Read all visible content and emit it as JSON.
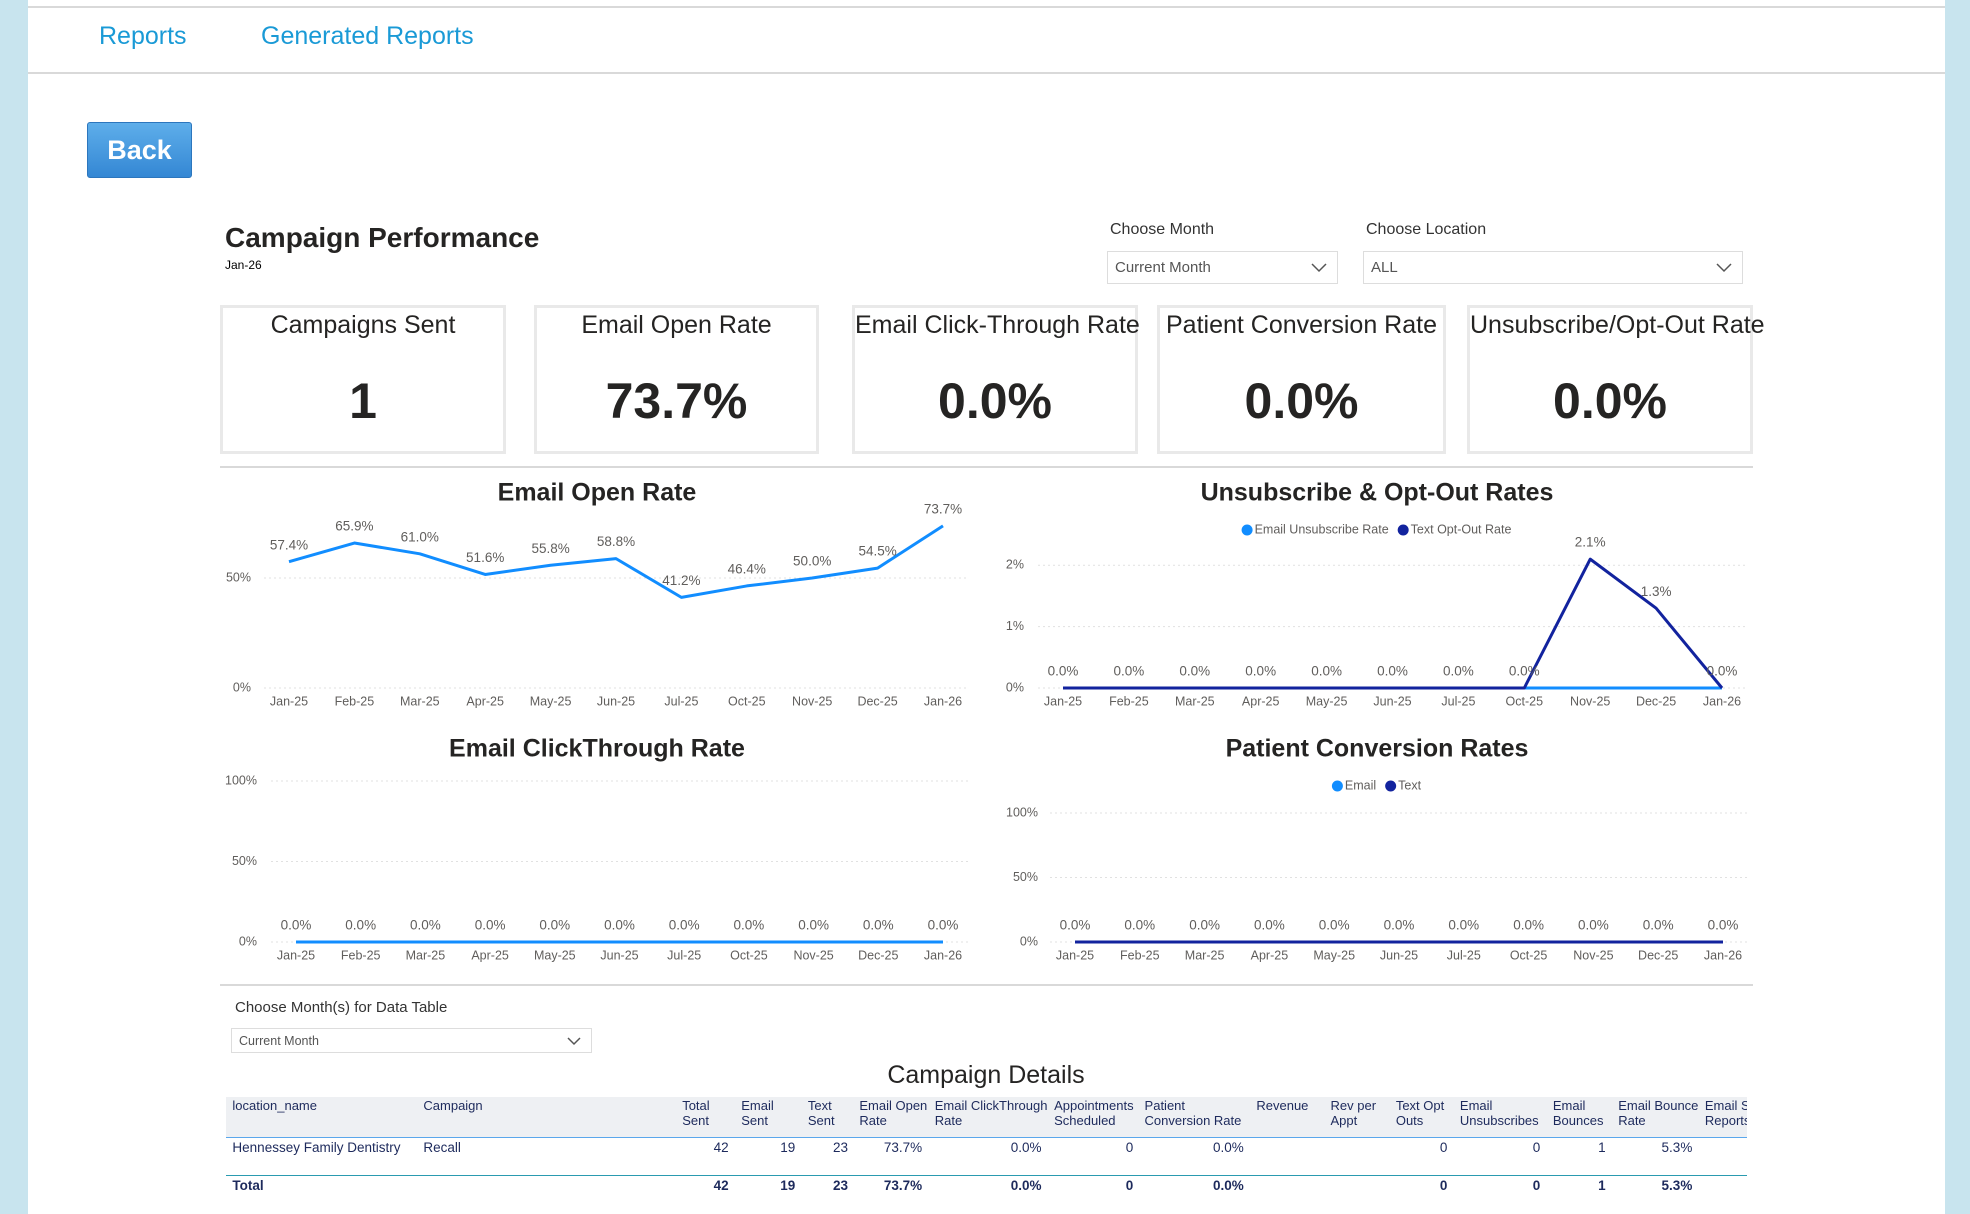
{
  "nav": {
    "links": [
      "Reports",
      "Generated Reports"
    ]
  },
  "back_button": "Back",
  "header": {
    "title": "Campaign Performance",
    "period": "Jan-26"
  },
  "filters": [
    {
      "label": "Choose Month",
      "value": "Current Month"
    },
    {
      "label": "Choose Location",
      "value": "ALL"
    }
  ],
  "kpis": [
    {
      "label": "Campaigns Sent",
      "value": "1"
    },
    {
      "label": "Email Open Rate",
      "value": "73.7%"
    },
    {
      "label": "Email Click-Through Rate",
      "value": "0.0%"
    },
    {
      "label": "Patient Conversion Rate",
      "value": "0.0%"
    },
    {
      "label": "Unsubscribe/Opt-Out Rate",
      "value": "0.0%"
    }
  ],
  "chart_data": [
    {
      "type": "line",
      "title": "Email Open Rate",
      "categories": [
        "Jan-25",
        "Feb-25",
        "Mar-25",
        "Apr-25",
        "May-25",
        "Jun-25",
        "Jul-25",
        "Oct-25",
        "Nov-25",
        "Dec-25",
        "Jan-26"
      ],
      "values": [
        57.4,
        65.9,
        61.0,
        51.6,
        55.8,
        58.8,
        41.2,
        46.4,
        50.0,
        54.5,
        73.7
      ],
      "value_labels": [
        "57.4%",
        "65.9%",
        "61.0%",
        "51.6%",
        "55.8%",
        "58.8%",
        "41.2%",
        "46.4%",
        "50.0%",
        "54.5%",
        "73.7%"
      ],
      "color": "#118dff",
      "ylim": [
        0,
        80
      ],
      "yticks": [
        {
          "value": 0,
          "label": "0%"
        },
        {
          "value": 50,
          "label": "50%"
        }
      ],
      "grid": true
    },
    {
      "type": "line",
      "title": "Unsubscribe & Opt-Out Rates",
      "categories": [
        "Jan-25",
        "Feb-25",
        "Mar-25",
        "Apr-25",
        "May-25",
        "Jun-25",
        "Jul-25",
        "Oct-25",
        "Nov-25",
        "Dec-25",
        "Jan-26"
      ],
      "series": [
        {
          "name": "Email Unsubscribe Rate",
          "color": "#118dff",
          "values": [
            0,
            0,
            0,
            0,
            0,
            0,
            0,
            0,
            0,
            0,
            0
          ]
        },
        {
          "name": "Text Opt-Out Rate",
          "color": "#12239e",
          "values": [
            0,
            0,
            0,
            0,
            0,
            0,
            0,
            0,
            2.1,
            1.3,
            0
          ],
          "value_labels": [
            "0.0%",
            "0.0%",
            "0.0%",
            "0.0%",
            "0.0%",
            "0.0%",
            "0.0%",
            "0.0%",
            "2.1%",
            "1.3%",
            "0.0%"
          ]
        }
      ],
      "ylim": [
        0,
        2.2
      ],
      "yticks": [
        {
          "value": 0,
          "label": "0%"
        },
        {
          "value": 1,
          "label": "1%"
        },
        {
          "value": 2,
          "label": "2%"
        }
      ],
      "grid": true,
      "legend": "top"
    },
    {
      "type": "line",
      "title": "Email ClickThrough Rate",
      "categories": [
        "Jan-25",
        "Feb-25",
        "Mar-25",
        "Apr-25",
        "May-25",
        "Jun-25",
        "Jul-25",
        "Oct-25",
        "Nov-25",
        "Dec-25",
        "Jan-26"
      ],
      "values": [
        0,
        0,
        0,
        0,
        0,
        0,
        0,
        0,
        0,
        0,
        0
      ],
      "value_labels": [
        "0.0%",
        "0.0%",
        "0.0%",
        "0.0%",
        "0.0%",
        "0.0%",
        "0.0%",
        "0.0%",
        "0.0%",
        "0.0%",
        "0.0%"
      ],
      "color": "#118dff",
      "ylim": [
        0,
        100
      ],
      "yticks": [
        {
          "value": 0,
          "label": "0%"
        },
        {
          "value": 50,
          "label": "50%"
        },
        {
          "value": 100,
          "label": "100%"
        }
      ],
      "grid": true
    },
    {
      "type": "line",
      "title": "Patient Conversion Rates",
      "categories": [
        "Jan-25",
        "Feb-25",
        "Mar-25",
        "Apr-25",
        "May-25",
        "Jun-25",
        "Jul-25",
        "Oct-25",
        "Nov-25",
        "Dec-25",
        "Jan-26"
      ],
      "series": [
        {
          "name": "Email",
          "color": "#118dff",
          "values": [
            0,
            0,
            0,
            0,
            0,
            0,
            0,
            0,
            0,
            0,
            0
          ]
        },
        {
          "name": "Text",
          "color": "#12239e",
          "values": [
            0,
            0,
            0,
            0,
            0,
            0,
            0,
            0,
            0,
            0,
            0
          ],
          "value_labels": [
            "0.0%",
            "0.0%",
            "0.0%",
            "0.0%",
            "0.0%",
            "0.0%",
            "0.0%",
            "0.0%",
            "0.0%",
            "0.0%",
            "0.0%"
          ]
        }
      ],
      "ylim": [
        0,
        100
      ],
      "yticks": [
        {
          "value": 0,
          "label": "0%"
        },
        {
          "value": 50,
          "label": "50%"
        },
        {
          "value": 100,
          "label": "100%"
        }
      ],
      "grid": true,
      "legend": "top"
    }
  ],
  "table_filter": {
    "label": "Choose Month(s) for Data Table",
    "value": "Current Month"
  },
  "table": {
    "title": "Campaign Details",
    "columns": [
      "location_name",
      "Campaign",
      "Total Sent",
      "Email Sent",
      "Text Sent",
      "Email Open Rate",
      "Email ClickThrough Rate",
      "Appointments Scheduled",
      "Patient Conversion Rate",
      "Revenue",
      "Rev per Appt",
      "Text Opt Outs",
      "Email Unsubscribes",
      "Email Bounces",
      "Email Bounce Rate",
      "Email S Reports"
    ],
    "rows": [
      [
        "Hennessey Family Dentistry",
        "Recall",
        42,
        19,
        23,
        "73.7%",
        "0.0%",
        0,
        "0.0%",
        null,
        null,
        0,
        0,
        1,
        "5.3%",
        null
      ]
    ],
    "total": [
      "Total",
      null,
      42,
      19,
      23,
      "73.7%",
      "0.0%",
      0,
      "0.0%",
      null,
      null,
      0,
      0,
      1,
      "5.3%",
      null
    ]
  }
}
